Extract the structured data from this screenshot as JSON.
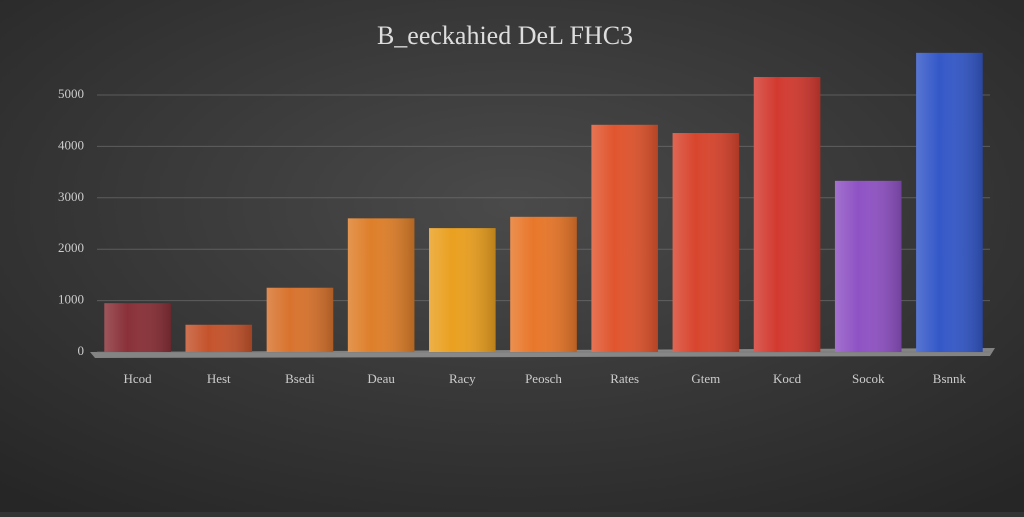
{
  "chart_data": {
    "type": "bar",
    "title": "B_eeckahied DeL FHC3",
    "categories": [
      "Hcod",
      "Hest",
      "Bsedi",
      "Deau",
      "Racy",
      "Peosch",
      "Rates",
      "Gtem",
      "Kocd",
      "Socok",
      "Bsnnk"
    ],
    "values": [
      950,
      530,
      1250,
      2600,
      2410,
      2630,
      4420,
      4260,
      5350,
      3330,
      5820
    ],
    "colors": [
      "#8a3038",
      "#c4532c",
      "#d8732e",
      "#de7f2a",
      "#eaa020",
      "#e8772a",
      "#e0552e",
      "#d8452e",
      "#d23a30",
      "#8f52c4",
      "#3458c8"
    ],
    "ylim": [
      0,
      6000
    ],
    "yticks": [
      0,
      1000,
      2000,
      3000,
      4000,
      5000
    ],
    "grid": true
  }
}
